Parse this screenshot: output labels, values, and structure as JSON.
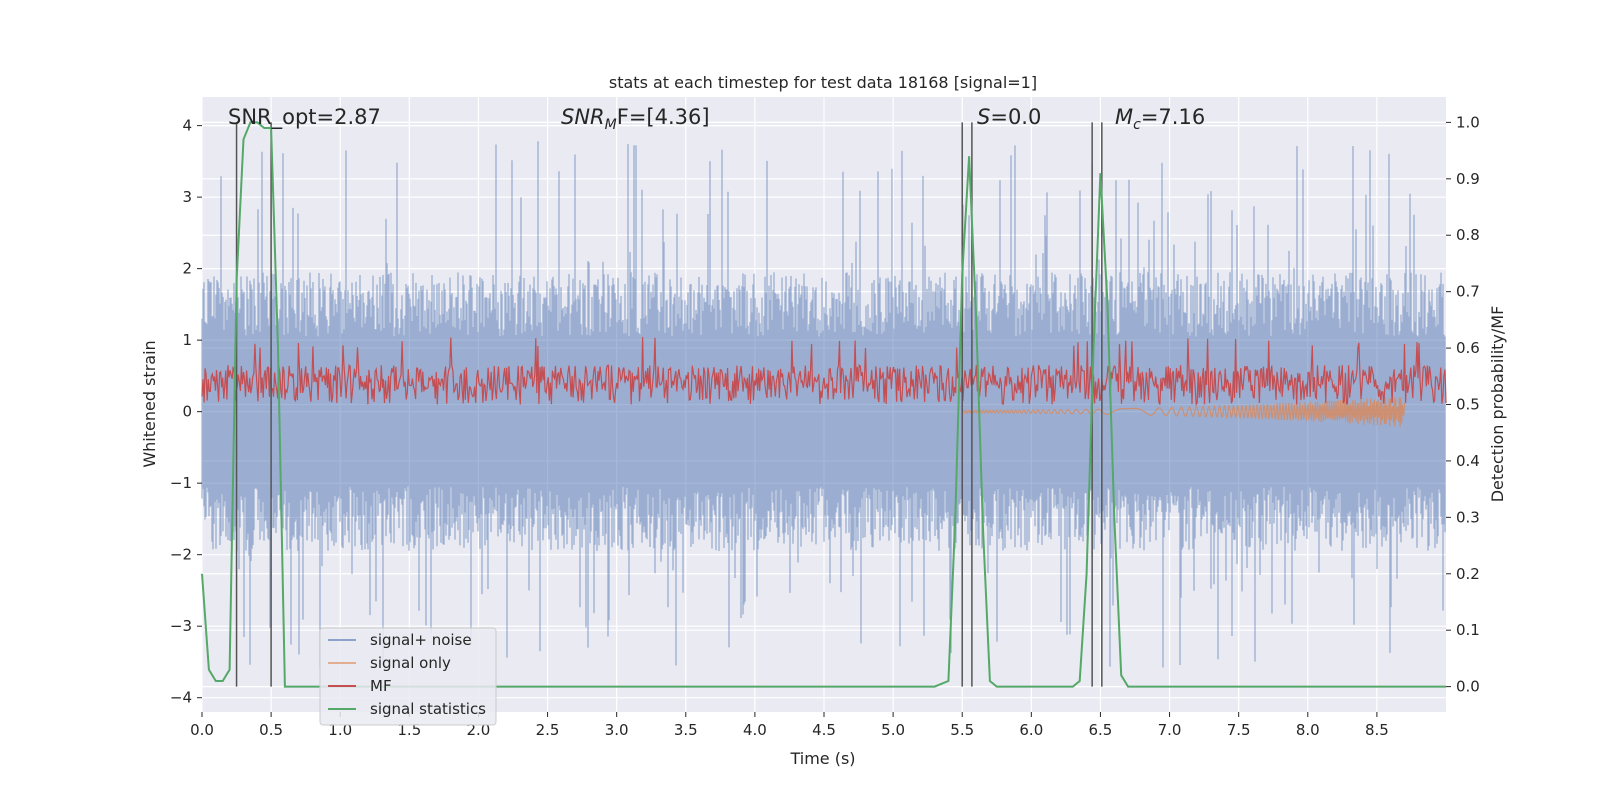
{
  "chart_data": {
    "type": "line",
    "title": "stats at each timestep for test data 18168 [signal=1]",
    "xlabel": "Time (s)",
    "ylabel": "Whitened strain",
    "y2label": "Detection probability/MF",
    "xlim": [
      0,
      9.0
    ],
    "ylim": [
      -4.2,
      4.4
    ],
    "y2lim": [
      -0.045,
      1.045
    ],
    "x_ticks": [
      "0.0",
      "0.5",
      "1.0",
      "1.5",
      "2.0",
      "2.5",
      "3.0",
      "3.5",
      "4.0",
      "4.5",
      "5.0",
      "5.5",
      "6.0",
      "6.5",
      "7.0",
      "7.5",
      "8.0",
      "8.5"
    ],
    "y_ticks": [
      "4",
      "3",
      "2",
      "1",
      "0",
      "−1",
      "−2",
      "−3",
      "−4"
    ],
    "y2_ticks": [
      "1.0",
      "0.9",
      "0.8",
      "0.7",
      "0.6",
      "0.5",
      "0.4",
      "0.3",
      "0.2",
      "0.1",
      "0.0"
    ],
    "grid": true,
    "legend_position": "lower-left",
    "annotations": {
      "snr_opt": "SNR_opt=2.87",
      "snr_mf_main": "SNR",
      "snr_mf_sub": "M",
      "snr_mf_tail": "F=[4.36]",
      "s_main": "S",
      "s_tail": "=0.0",
      "mc_main": "M",
      "mc_sub": "c",
      "mc_tail": "=7.16"
    },
    "vertical_markers": [
      0.25,
      0.5,
      5.5,
      5.57,
      6.44,
      6.51
    ],
    "series": [
      {
        "name": "signal+ noise",
        "color": "#4c72b0",
        "axis": "left",
        "envelope": {
          "median_abs": 1.5,
          "max_abs": 4.0
        }
      },
      {
        "name": "signal only",
        "color": "#dd8452",
        "axis": "left",
        "chirp": {
          "start": 5.5,
          "end": 8.7,
          "max_amp": 0.2
        }
      },
      {
        "name": "MF",
        "color": "#c44e52",
        "axis": "right",
        "range": [
          0.5,
          0.6
        ]
      },
      {
        "name": "signal statistics",
        "color": "#55a868",
        "axis": "right",
        "x": [
          0.0,
          0.05,
          0.1,
          0.15,
          0.2,
          0.25,
          0.3,
          0.35,
          0.4,
          0.45,
          0.5,
          0.55,
          0.6,
          0.65,
          0.8,
          1.0,
          2.0,
          3.0,
          4.0,
          4.5,
          4.9,
          5.0,
          5.3,
          5.4,
          5.45,
          5.5,
          5.55,
          5.6,
          5.65,
          5.7,
          5.75,
          6.0,
          6.3,
          6.35,
          6.4,
          6.45,
          6.5,
          6.55,
          6.6,
          6.65,
          6.7,
          7.0,
          8.0,
          9.0
        ],
        "y": [
          0.2,
          0.03,
          0.01,
          0.01,
          0.03,
          0.72,
          0.97,
          1.0,
          1.0,
          0.99,
          0.99,
          0.6,
          0.0,
          0.0,
          0.0,
          0.0,
          0.0,
          0.0,
          0.0,
          0.0,
          0.0,
          0.0,
          0.0,
          0.01,
          0.3,
          0.73,
          0.94,
          0.66,
          0.28,
          0.01,
          0.0,
          0.0,
          0.0,
          0.01,
          0.2,
          0.6,
          0.91,
          0.68,
          0.3,
          0.02,
          0.0,
          0.0,
          0.0,
          0.0
        ]
      }
    ]
  }
}
